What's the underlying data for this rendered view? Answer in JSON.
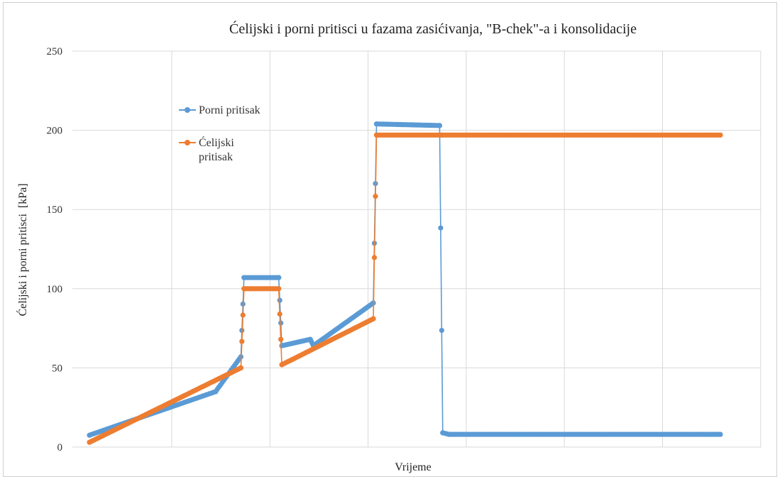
{
  "chart_data": {
    "type": "line",
    "title": "Ćelijski i porni pritisci u fazama zasićivanja, \"B-chek\"-a  i konsolidacije",
    "xlabel": "Vrijeme",
    "ylabel": "Ćelijski i porni pritisci  [kPa]",
    "ylim": [
      0,
      250
    ],
    "yticks": [
      0,
      50,
      100,
      150,
      200,
      250
    ],
    "xlim": [
      0,
      1
    ],
    "xgrid_lines": 7,
    "grid": true,
    "legend_position": "top-left",
    "series": [
      {
        "name": "Porni pritisak",
        "color": "#5B9BD5",
        "x": [
          0.0,
          0.2,
          0.24,
          0.245,
          0.3,
          0.305,
          0.35,
          0.355,
          0.45,
          0.455,
          0.555,
          0.56,
          0.57,
          1.0
        ],
        "y": [
          7.5,
          35,
          57,
          107,
          107,
          64,
          68,
          64,
          91,
          204,
          203,
          9,
          8,
          8
        ]
      },
      {
        "name": "Ćelijski\npritisak",
        "color": "#ED7D31",
        "x": [
          0.0,
          0.24,
          0.245,
          0.3,
          0.305,
          0.45,
          0.455,
          0.555,
          0.56,
          1.0
        ],
        "y": [
          3,
          50,
          100,
          100,
          52,
          81,
          197,
          197,
          197,
          197
        ]
      }
    ],
    "legend": [
      "Porni pritisak",
      "Ćelijski\npritisak"
    ]
  }
}
